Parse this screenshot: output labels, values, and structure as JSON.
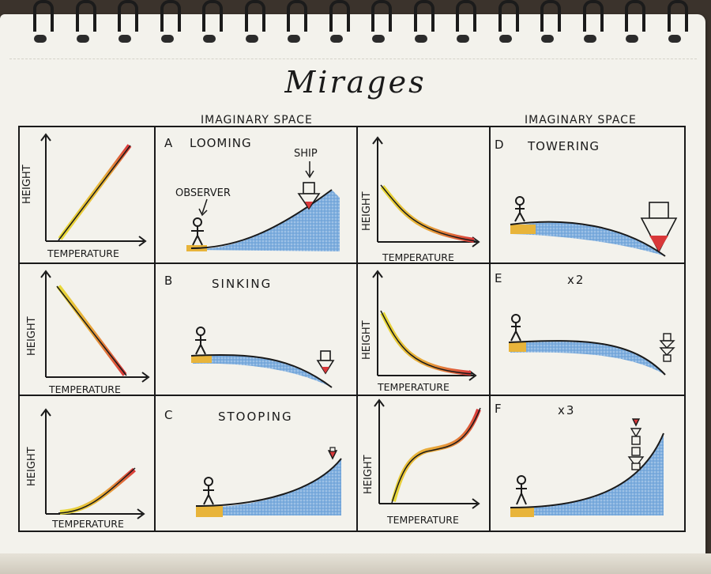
{
  "title": "Mirages",
  "headers": {
    "left": "IMAGINARY SPACE",
    "right": "IMAGINARY SPACE"
  },
  "axis": {
    "x": "TEMPERATURE",
    "y": "HEIGHT"
  },
  "labels": {
    "observer": "OBSERVER",
    "ship": "SHIP"
  },
  "panels": [
    {
      "letter": "A",
      "name": "LOOMING"
    },
    {
      "letter": "B",
      "name": "SINKING"
    },
    {
      "letter": "C",
      "name": "STOOPING"
    },
    {
      "letter": "D",
      "name": "TOWERING"
    },
    {
      "letter": "E",
      "name": "x2"
    },
    {
      "letter": "F",
      "name": "x3"
    }
  ],
  "colors": {
    "ink": "#1a1a1a",
    "warm": "#e8b43a",
    "hot": "#d9383a",
    "cool": "#5d9ad8",
    "paper": "#f3f2ec"
  }
}
